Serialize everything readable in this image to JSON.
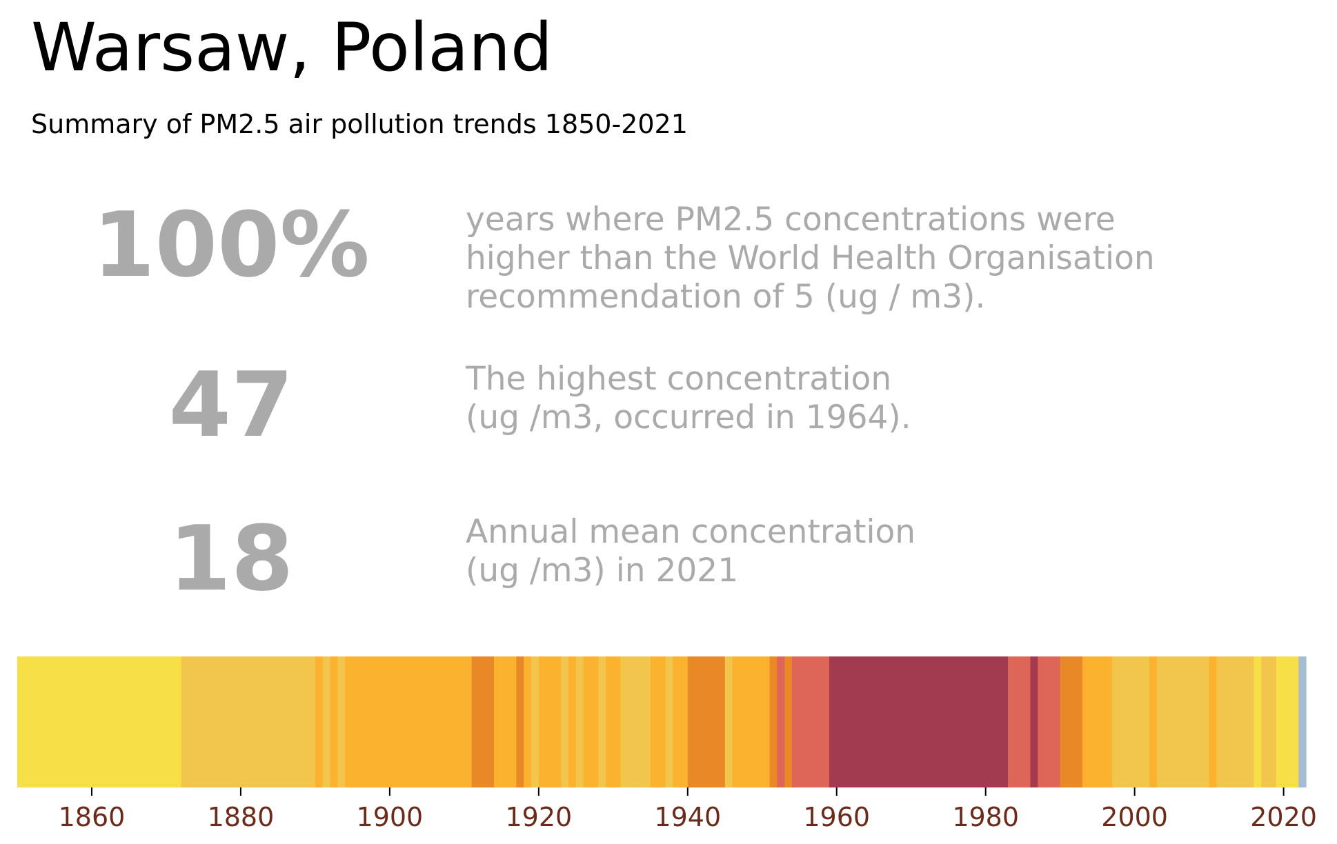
{
  "header": {
    "title": "Warsaw, Poland",
    "subtitle": "Summary of PM2.5 air pollution trends 1850-2021"
  },
  "stats": [
    {
      "value": "100%",
      "lines": [
        "years where PM2.5 concentrations were",
        "higher than the World Health Organisation",
        "recommendation of 5 (ug / m3)."
      ]
    },
    {
      "value": "47",
      "lines": [
        "The highest concentration",
        "(ug /m3, occurred in 1964)."
      ]
    },
    {
      "value": "18",
      "lines": [
        "Annual mean concentration",
        "(ug /m3) in 2021"
      ]
    }
  ],
  "colors": {
    "stat_text": "#aaaaaa",
    "tick_text": "#6b2a1a",
    "palette": {
      "1": "#f7df47",
      "2": "#f2c54c",
      "3": "#fbb22e",
      "4": "#e98827",
      "5": "#de6658",
      "6": "#a33b50",
      "7": "#a6bcd0"
    }
  },
  "chart_data": {
    "type": "heatmap",
    "xlim": [
      1850,
      2022
    ],
    "xticks": [
      "1860",
      "1880",
      "1900",
      "1920",
      "1940",
      "1960",
      "1980",
      "2000",
      "2020"
    ],
    "segments": [
      {
        "start": 1850,
        "end": 1871,
        "level": 1
      },
      {
        "start": 1872,
        "end": 1889,
        "level": 2
      },
      {
        "start": 1890,
        "end": 1890,
        "level": 3
      },
      {
        "start": 1891,
        "end": 1891,
        "level": 2
      },
      {
        "start": 1892,
        "end": 1892,
        "level": 3
      },
      {
        "start": 1893,
        "end": 1893,
        "level": 2
      },
      {
        "start": 1894,
        "end": 1910,
        "level": 3
      },
      {
        "start": 1911,
        "end": 1913,
        "level": 4
      },
      {
        "start": 1914,
        "end": 1916,
        "level": 3
      },
      {
        "start": 1917,
        "end": 1917,
        "level": 4
      },
      {
        "start": 1918,
        "end": 1918,
        "level": 3
      },
      {
        "start": 1919,
        "end": 1919,
        "level": 2
      },
      {
        "start": 1920,
        "end": 1922,
        "level": 3
      },
      {
        "start": 1923,
        "end": 1923,
        "level": 2
      },
      {
        "start": 1924,
        "end": 1924,
        "level": 3
      },
      {
        "start": 1925,
        "end": 1925,
        "level": 2
      },
      {
        "start": 1926,
        "end": 1927,
        "level": 3
      },
      {
        "start": 1928,
        "end": 1928,
        "level": 2
      },
      {
        "start": 1929,
        "end": 1930,
        "level": 3
      },
      {
        "start": 1931,
        "end": 1934,
        "level": 2
      },
      {
        "start": 1935,
        "end": 1936,
        "level": 3
      },
      {
        "start": 1937,
        "end": 1937,
        "level": 2
      },
      {
        "start": 1938,
        "end": 1939,
        "level": 3
      },
      {
        "start": 1940,
        "end": 1944,
        "level": 4
      },
      {
        "start": 1945,
        "end": 1945,
        "level": 2
      },
      {
        "start": 1946,
        "end": 1950,
        "level": 3
      },
      {
        "start": 1951,
        "end": 1951,
        "level": 4
      },
      {
        "start": 1952,
        "end": 1952,
        "level": 5
      },
      {
        "start": 1953,
        "end": 1953,
        "level": 4
      },
      {
        "start": 1954,
        "end": 1958,
        "level": 5
      },
      {
        "start": 1959,
        "end": 1982,
        "level": 6
      },
      {
        "start": 1983,
        "end": 1985,
        "level": 5
      },
      {
        "start": 1986,
        "end": 1986,
        "level": 6
      },
      {
        "start": 1987,
        "end": 1989,
        "level": 5
      },
      {
        "start": 1990,
        "end": 1992,
        "level": 4
      },
      {
        "start": 1993,
        "end": 1996,
        "level": 3
      },
      {
        "start": 1997,
        "end": 2001,
        "level": 2
      },
      {
        "start": 2002,
        "end": 2002,
        "level": 3
      },
      {
        "start": 2003,
        "end": 2009,
        "level": 2
      },
      {
        "start": 2010,
        "end": 2010,
        "level": 3
      },
      {
        "start": 2011,
        "end": 2015,
        "level": 2
      },
      {
        "start": 2016,
        "end": 2016,
        "level": 1
      },
      {
        "start": 2017,
        "end": 2018,
        "level": 2
      },
      {
        "start": 2019,
        "end": 2021,
        "level": 1
      },
      {
        "start": 2022,
        "end": 2022,
        "level": 7
      }
    ]
  }
}
